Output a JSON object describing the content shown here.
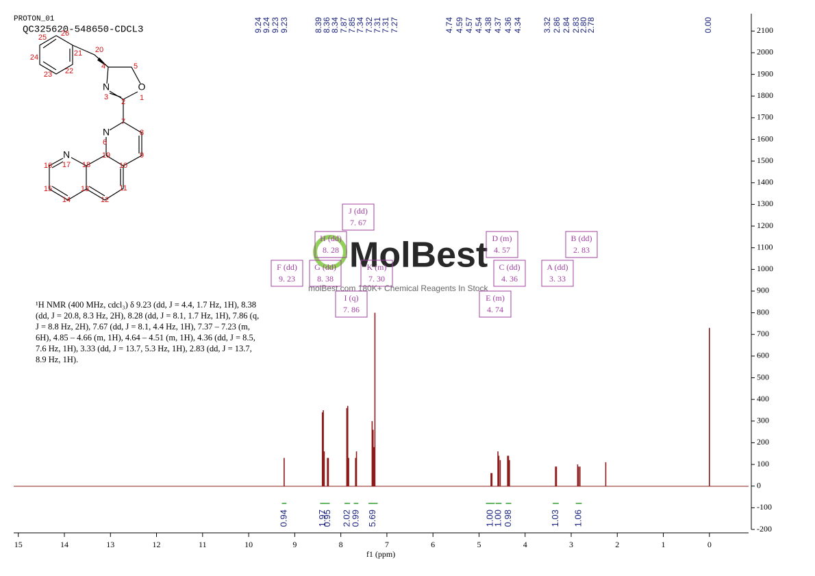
{
  "header": {
    "title": "PROTON_01",
    "sample": "QC325620-548650-CDCL3"
  },
  "structure": {
    "elements": [
      "N",
      "O",
      "N",
      "N"
    ],
    "numbers": [
      "26",
      "25",
      "21",
      "20",
      "24",
      "23",
      "22",
      "4",
      "5",
      "3",
      "1",
      "2",
      "7",
      "8",
      "6",
      "9",
      "19",
      "10",
      "16",
      "17",
      "18",
      "13",
      "11",
      "15",
      "14",
      "12"
    ]
  },
  "description": "¹H NMR (400 MHz, cdcl₃) δ 9.23 (dd, J = 4.4, 1.7 Hz, 1H), 8.38 (dd, J = 20.8, 8.3 Hz, 2H), 8.28 (dd, J = 8.1, 1.7 Hz, 1H), 7.86 (q, J = 8.8 Hz, 2H), 7.67 (dd, J = 8.1, 4.4 Hz, 1H), 7.37 – 7.23 (m, 6H), 4.85 – 4.66 (m, 1H), 4.64 – 4.51 (m, 1H), 4.36 (dd, J = 8.5, 7.6 Hz, 1H), 3.33 (dd, J = 13.7, 5.3 Hz, 1H), 2.83 (dd, J = 13.7, 8.9 Hz, 1H).",
  "watermark": {
    "logo": "MolBest",
    "tagline": "molBest.com 180K+ Chemical Reagents In Stock"
  },
  "multiplets": [
    {
      "label": "F (dd)",
      "shift": "9. 23"
    },
    {
      "label": "G (dd)",
      "shift": "8. 38"
    },
    {
      "label": "H (dd)",
      "shift": "8. 28"
    },
    {
      "label": "J (dd)",
      "shift": "7. 67"
    },
    {
      "label": "K (m)",
      "shift": "7. 30"
    },
    {
      "label": "I (q)",
      "shift": "7. 86"
    },
    {
      "label": "D (m)",
      "shift": "4. 57"
    },
    {
      "label": "B (dd)",
      "shift": "2. 83"
    },
    {
      "label": "C (dd)",
      "shift": "4. 36"
    },
    {
      "label": "A (dd)",
      "shift": "3. 33"
    },
    {
      "label": "E (m)",
      "shift": "4. 74"
    }
  ],
  "chart_data": {
    "type": "nmr",
    "x_label": "f1 (ppm)",
    "color": "#8b1a1a",
    "xlim": [
      15.1,
      -0.85
    ],
    "xticks": [
      15,
      14,
      13,
      12,
      11,
      10,
      9,
      8,
      7,
      6,
      5,
      4,
      3,
      2,
      1,
      0
    ],
    "ylim": [
      -200,
      2180
    ],
    "yticks": [
      -200,
      -100,
      0,
      100,
      200,
      300,
      400,
      500,
      600,
      700,
      800,
      900,
      1000,
      1100,
      1200,
      1300,
      1400,
      1500,
      1600,
      1700,
      1800,
      1900,
      2000,
      2100
    ],
    "x": [
      9.23,
      8.4,
      8.38,
      8.36,
      8.29,
      8.27,
      7.87,
      7.85,
      7.83,
      7.68,
      7.66,
      7.32,
      7.3,
      7.28,
      7.26,
      4.74,
      4.72,
      4.59,
      4.57,
      4.54,
      4.38,
      4.36,
      4.34,
      3.34,
      3.32,
      2.86,
      2.84,
      2.81,
      2.25,
      0.0
    ],
    "values": [
      130,
      340,
      350,
      160,
      130,
      130,
      360,
      370,
      130,
      130,
      160,
      300,
      260,
      180,
      800,
      60,
      60,
      160,
      140,
      120,
      140,
      140,
      120,
      90,
      90,
      100,
      90,
      90,
      110,
      730
    ],
    "peak_labels": [
      "9.24",
      "9.24",
      "9.23",
      "9.23",
      "8.39",
      "8.36",
      "8.34",
      "7.87",
      "7.85",
      "7.34",
      "7.32",
      "7.31",
      "7.31",
      "7.27",
      "4.74",
      "4.59",
      "4.57",
      "4.54",
      "4.38",
      "4.37",
      "4.36",
      "4.34",
      "3.32",
      "2.86",
      "2.84",
      "2.83",
      "2.80",
      "2.78",
      "0.00"
    ],
    "integrals": {
      "ranges": [
        [
          9.28,
          9.18
        ],
        [
          8.45,
          8.32
        ],
        [
          8.32,
          8.24
        ],
        [
          7.92,
          7.8
        ],
        [
          7.72,
          7.62
        ],
        [
          7.4,
          7.2
        ],
        [
          4.85,
          4.66
        ],
        [
          4.64,
          4.51
        ],
        [
          4.42,
          4.3
        ],
        [
          3.4,
          3.27
        ],
        [
          2.9,
          2.77
        ]
      ],
      "values": [
        0.94,
        1.97,
        0.95,
        2.02,
        0.99,
        5.69,
        1.0,
        1.0,
        0.98,
        1.03,
        1.06
      ],
      "value_labels": [
        "0.94",
        "1.97",
        "0.95",
        "2.02",
        "0.99",
        "5.69",
        "1.00",
        "1.00",
        "0.98",
        "1.03",
        "1.06"
      ]
    }
  }
}
